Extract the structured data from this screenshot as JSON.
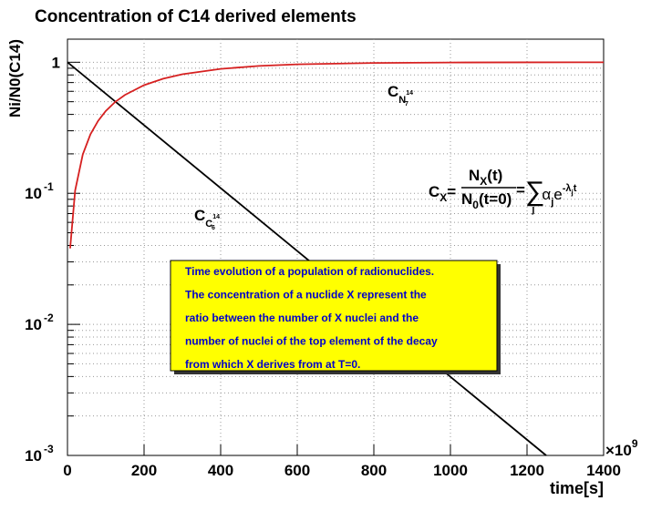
{
  "chart_data": {
    "type": "line",
    "title": "Concentration of C14 derived elements",
    "y_label": "Ni/N0(C14)",
    "x_label": "time[s]",
    "x_multiplier": {
      "label": "×10",
      "exponent": "9"
    },
    "log_y": true,
    "grid": true,
    "xlim": [
      0,
      1400
    ],
    "xticks": [
      0,
      200,
      400,
      600,
      800,
      1000,
      1200,
      1400
    ],
    "ylim": [
      0.001,
      1.5
    ],
    "yticks": [
      {
        "value": 0.001,
        "label": "10",
        "exponent": "-3"
      },
      {
        "value": 0.01,
        "label": "10",
        "exponent": "-2"
      },
      {
        "value": 0.1,
        "label": "10",
        "exponent": "-1"
      },
      1
    ],
    "series": [
      {
        "color": "#000000",
        "x": [
          0,
          1250
        ],
        "values": [
          1,
          0.001
        ]
      },
      {
        "color": "#d62020",
        "x": [
          7,
          20,
          40,
          60,
          80,
          100,
          125,
          150,
          200,
          250,
          300,
          400,
          500,
          600,
          800,
          1000,
          1200,
          1400
        ],
        "values": [
          0.038,
          0.105,
          0.198,
          0.282,
          0.357,
          0.425,
          0.499,
          0.563,
          0.669,
          0.749,
          0.81,
          0.89,
          0.937,
          0.964,
          0.988,
          0.996,
          0.9987,
          0.9995
        ]
      }
    ],
    "curve_labels": [
      {
        "base": "C",
        "sub": "N",
        "sup": "14",
        "subsub": "7"
      },
      {
        "base": "C",
        "sub": "C",
        "sup": "14",
        "subsub": "6"
      }
    ],
    "formula": {
      "lhs": "C",
      "lhs_sub": "X",
      "eq": "=",
      "num": "N",
      "num_sub": "X",
      "num_arg": "(t)",
      "den": "N",
      "den_sub": "0",
      "den_arg": "(t=0)",
      "sum": "∑",
      "sum_sub": "j",
      "alpha": "α",
      "alpha_sub": "j",
      "exp": "e",
      "exp_sup": "-λ",
      "exp_sup_sub": "j",
      "exp_sup_t": "t"
    },
    "textbox": [
      "Time evolution of a population of radionuclides.",
      "The concentration of a nuclide X represent the",
      "ratio between the number of X nuclei and the",
      "number of nuclei of the top element of the decay",
      "from which X derives from at T=0."
    ]
  }
}
